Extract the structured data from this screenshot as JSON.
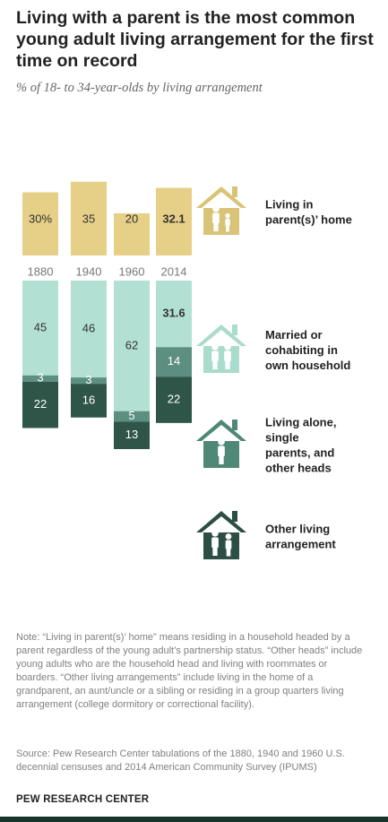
{
  "title": "Living with a parent is the most common young adult living arrangement for the first time on record",
  "subtitle": "% of 18- to 34-year-olds by living arrangement",
  "note": "Note: “Living in parent(s)’ home” means residing in a household headed by a parent regardless of the young adult’s partnership status. “Other heads” include young adults who are the household head and living with roommates or boarders. “Other living arrangements” include living in the home of a grandparent, an aunt/uncle or a sibling or residing in a group quarters living arrangement (college dormitory or correctional facility).",
  "source": "Source: Pew Research Center tabulations of the 1880, 1940 and 1960 U.S. decennial censuses and 2014 American Community Survey (IPUMS)",
  "brand": "PEW RESEARCH CENTER",
  "colors": {
    "parents": "#e6cf86",
    "married": "#b2e0d2",
    "alone": "#5d8f80",
    "other": "#2f5548",
    "label_dark": "#333333",
    "label_light": "#ffffff",
    "icon_yellow": "#d9c377",
    "icon_teal_light": "#a9dccc",
    "icon_teal_mid": "#4f8877",
    "icon_teal_dark": "#2d4e44",
    "year_label": "#777777"
  },
  "chart_data": {
    "type": "bar",
    "title": "Living with a parent is the most common young adult living arrangement for the first time on record",
    "subtitle": "% of 18- to 34-year-olds by living arrangement",
    "categories": [
      "1880",
      "1940",
      "1960",
      "2014"
    ],
    "upper_series": {
      "name": "Living in parent(s)’ home",
      "values": [
        30,
        35,
        20,
        32.1
      ],
      "labels": [
        "30%",
        "35",
        "20",
        "32.1"
      ],
      "icon": "house-with-adult-and-child-icon"
    },
    "lower_series": [
      {
        "name": "Married or cohabiting in own household",
        "values": [
          45,
          46,
          62,
          31.6
        ],
        "labels": [
          "45",
          "46",
          "62",
          "31.6"
        ],
        "icon": "house-with-couple-icon"
      },
      {
        "name": "Living alone, single parents, and other heads",
        "values": [
          3,
          3,
          5,
          14
        ],
        "labels": [
          "3",
          "3",
          "5",
          "14"
        ],
        "icon": "house-with-single-person-icon"
      },
      {
        "name": "Other living arrangement",
        "values": [
          22,
          16,
          13,
          22
        ],
        "labels": [
          "22",
          "16",
          "13",
          "22"
        ],
        "icon": "house-with-elder-and-adult-icon"
      }
    ],
    "bold_category": "2014",
    "grid": false,
    "legend": "right"
  }
}
